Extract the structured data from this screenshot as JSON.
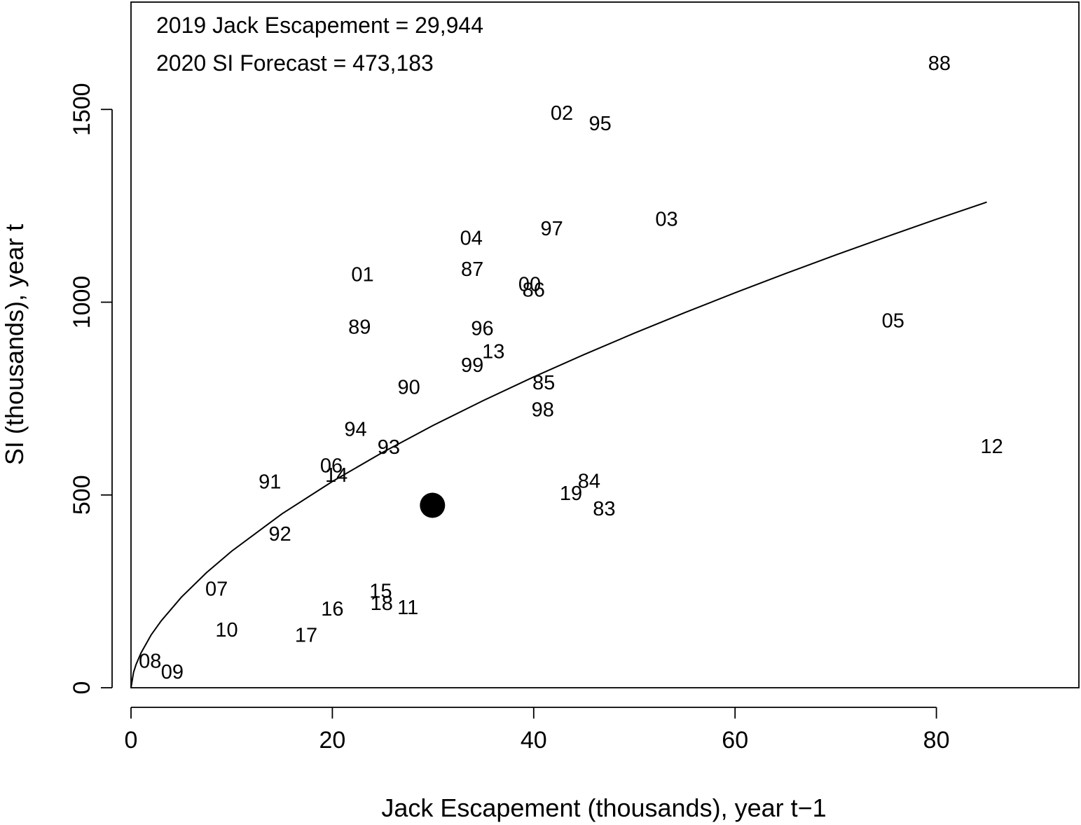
{
  "chart_data": {
    "type": "scatter",
    "title": "",
    "xlabel": "Jack Escapement (thousands), year t−1",
    "ylabel": "SI (thousands), year t",
    "xlim": [
      0,
      94
    ],
    "ylim": [
      0,
      1780
    ],
    "x_ticks": [
      0,
      20,
      40,
      60,
      80
    ],
    "y_ticks": [
      0,
      500,
      1000,
      1500
    ],
    "grid": false,
    "legend": "none",
    "annotations": [
      "2019 Jack Escapement = 29,944",
      "2020 SI Forecast = 473,183"
    ],
    "forecast_point": {
      "x": 29.944,
      "y": 473.183
    },
    "fit_curve": {
      "model": "power",
      "x": [
        0,
        0.25,
        0.5,
        1,
        2,
        3,
        5,
        7.5,
        10,
        15,
        20,
        25,
        30,
        35,
        40,
        45,
        50,
        55,
        60,
        65,
        70,
        75,
        80,
        85
      ],
      "y": [
        0,
        39.8,
        60.1,
        90.7,
        136.9,
        173.5,
        234.9,
        298.6,
        354.3,
        451.1,
        535.0,
        610.6,
        680.2,
        745.0,
        806.1,
        864.2,
        919.7,
        973.0,
        1024.4,
        1074.1,
        1122.4,
        1169.3,
        1215.0,
        1259.6
      ]
    },
    "points": [
      {
        "label": "83",
        "x": 47.0,
        "y": 465
      },
      {
        "label": "84",
        "x": 45.5,
        "y": 537
      },
      {
        "label": "85",
        "x": 41.0,
        "y": 792
      },
      {
        "label": "86",
        "x": 40.0,
        "y": 1033
      },
      {
        "label": "87",
        "x": 33.9,
        "y": 1086
      },
      {
        "label": "88",
        "x": 80.3,
        "y": 1620
      },
      {
        "label": "89",
        "x": 22.7,
        "y": 936
      },
      {
        "label": "90",
        "x": 27.6,
        "y": 780
      },
      {
        "label": "91",
        "x": 13.8,
        "y": 535
      },
      {
        "label": "92",
        "x": 14.8,
        "y": 400
      },
      {
        "label": "93",
        "x": 25.6,
        "y": 625
      },
      {
        "label": "94",
        "x": 22.3,
        "y": 671
      },
      {
        "label": "95",
        "x": 46.6,
        "y": 1464
      },
      {
        "label": "96",
        "x": 34.9,
        "y": 933
      },
      {
        "label": "97",
        "x": 41.8,
        "y": 1192
      },
      {
        "label": "98",
        "x": 40.9,
        "y": 722
      },
      {
        "label": "99",
        "x": 33.9,
        "y": 837
      },
      {
        "label": "00",
        "x": 39.6,
        "y": 1047
      },
      {
        "label": "01",
        "x": 23.0,
        "y": 1073
      },
      {
        "label": "02",
        "x": 42.8,
        "y": 1491
      },
      {
        "label": "03",
        "x": 53.2,
        "y": 1216
      },
      {
        "label": "04",
        "x": 33.8,
        "y": 1167
      },
      {
        "label": "05",
        "x": 75.7,
        "y": 953
      },
      {
        "label": "06",
        "x": 19.9,
        "y": 577
      },
      {
        "label": "07",
        "x": 8.5,
        "y": 257
      },
      {
        "label": "08",
        "x": 1.9,
        "y": 70
      },
      {
        "label": "09",
        "x": 4.1,
        "y": 42
      },
      {
        "label": "10",
        "x": 9.5,
        "y": 151
      },
      {
        "label": "11",
        "x": 27.5,
        "y": 209
      },
      {
        "label": "12",
        "x": 85.5,
        "y": 627
      },
      {
        "label": "13",
        "x": 36.0,
        "y": 873
      },
      {
        "label": "14",
        "x": 20.4,
        "y": 552
      },
      {
        "label": "15",
        "x": 24.8,
        "y": 252
      },
      {
        "label": "16",
        "x": 20.0,
        "y": 205
      },
      {
        "label": "17",
        "x": 17.4,
        "y": 137
      },
      {
        "label": "18",
        "x": 24.9,
        "y": 220
      },
      {
        "label": "19",
        "x": 43.7,
        "y": 505
      }
    ]
  }
}
